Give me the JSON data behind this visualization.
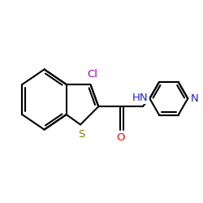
{
  "bg_color": "#ffffff",
  "atom_colors": {
    "C": "#000000",
    "N": "#2222cc",
    "O": "#ff0000",
    "S": "#808000",
    "Cl": "#9900cc",
    "H": "#000000"
  },
  "bond_color": "#000000",
  "bond_width": 1.5,
  "font_size": 9.5,
  "fig_width": 2.5,
  "fig_height": 2.5,
  "dpi": 100
}
